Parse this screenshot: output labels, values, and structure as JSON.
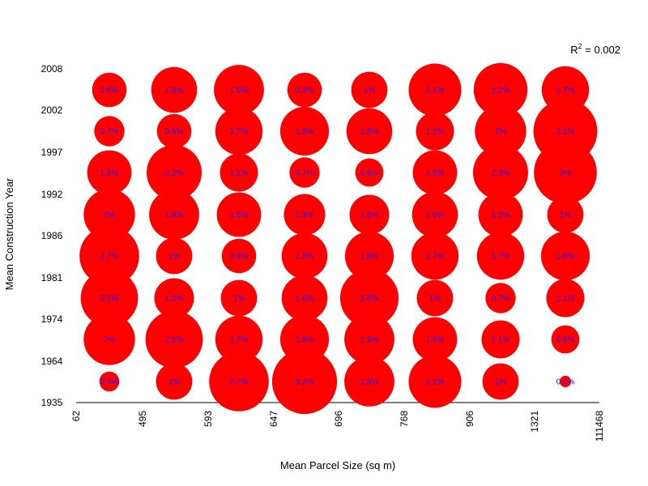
{
  "chart_data": {
    "type": "scatter",
    "subtype": "bubble-grid",
    "title": "",
    "xlabel": "Mean Parcel Size (sq m)",
    "ylabel": "Mean Construction Year",
    "x_ticks": [
      "62",
      "495",
      "593",
      "647",
      "696",
      "768",
      "906",
      "1321",
      "111468"
    ],
    "y_ticks": [
      "1935",
      "1964",
      "1974",
      "1981",
      "1986",
      "1992",
      "1997",
      "2002",
      "2008"
    ],
    "annotation": {
      "text": "R",
      "superscript": "2",
      "suffix": " = 0.002",
      "placement": "top-right"
    },
    "bubble_color": "#ff0000",
    "label_color": "#1a1aff",
    "rows": [
      {
        "labels": [
          "0.9%",
          "1.6%",
          "1.9%",
          "0.9%",
          "1%",
          "2.1%",
          "2.2%",
          "1.7%"
        ],
        "values": [
          0.9,
          1.6,
          1.9,
          0.9,
          1.0,
          2.1,
          2.2,
          1.7
        ]
      },
      {
        "labels": [
          "0.7%",
          "0.9%",
          "1.7%",
          "1.8%",
          "1.6%",
          "1.1%",
          "2%",
          "3.1%"
        ],
        "values": [
          0.7,
          0.9,
          1.7,
          1.8,
          1.6,
          1.1,
          2.0,
          3.1
        ]
      },
      {
        "labels": [
          "1.5%",
          "2.3%",
          "1.1%",
          "0.7%",
          "0.6%",
          "1.5%",
          "2.3%",
          "3%"
        ],
        "values": [
          1.5,
          2.3,
          1.1,
          0.7,
          0.6,
          1.5,
          2.3,
          3.0
        ]
      },
      {
        "labels": [
          "2%",
          "1.9%",
          "1.5%",
          "1.3%",
          "1.2%",
          "1.6%",
          "1.5%",
          "1%"
        ],
        "values": [
          2.0,
          1.9,
          1.5,
          1.3,
          1.2,
          1.6,
          1.5,
          1.0
        ]
      },
      {
        "labels": [
          "2.7%",
          "1%",
          "0.9%",
          "1.6%",
          "1.8%",
          "1.7%",
          "1.7%",
          "1.8%"
        ],
        "values": [
          2.7,
          1.0,
          0.9,
          1.6,
          1.8,
          1.7,
          1.7,
          1.8
        ]
      },
      {
        "labels": [
          "2.5%",
          "1.2%",
          "1%",
          "1.6%",
          "2.6%",
          "1%",
          "0.7%",
          "1.1%"
        ],
        "values": [
          2.5,
          1.2,
          1.0,
          1.6,
          2.6,
          1.0,
          0.7,
          1.1
        ]
      },
      {
        "labels": [
          "2%",
          "2.5%",
          "1.7%",
          "1.8%",
          "1.9%",
          "1.5%",
          "1.1%",
          "0.6%"
        ],
        "values": [
          2.0,
          2.5,
          1.7,
          1.8,
          1.9,
          1.5,
          1.1,
          0.6
        ]
      },
      {
        "labels": [
          "0.3%",
          "1%",
          "2.7%",
          "3.2%",
          "1.9%",
          "2.1%",
          "1%",
          "0.1%"
        ],
        "values": [
          0.3,
          1.0,
          2.7,
          3.2,
          1.9,
          2.1,
          1.0,
          0.1
        ]
      }
    ]
  }
}
